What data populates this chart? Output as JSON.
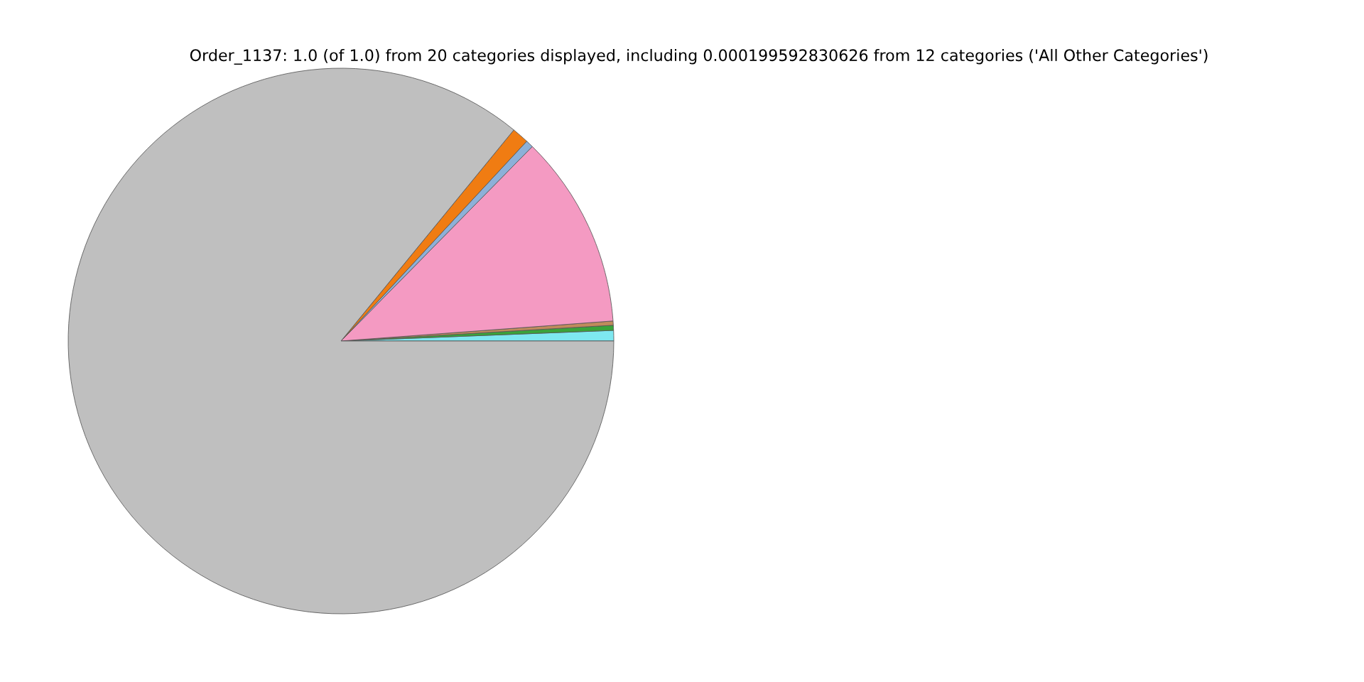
{
  "chart_data": {
    "type": "pie",
    "title": "Order_1137: 1.0 (of 1.0) from 20 categories displayed, including 0.000199592830626 from 12 categories ('All Other Categories')",
    "categories": [
      null,
      null,
      null,
      null,
      null,
      null,
      null
    ],
    "values": [
      0.62,
      0.3,
      0.25,
      11.46,
      0.45,
      1.0,
      85.92
    ],
    "colors": [
      "#7ee8f0",
      "#3aa33a",
      "#c08b5c",
      "#f49ac2",
      "#8cb0d8",
      "#f07c12",
      "#bfbfbf"
    ]
  }
}
